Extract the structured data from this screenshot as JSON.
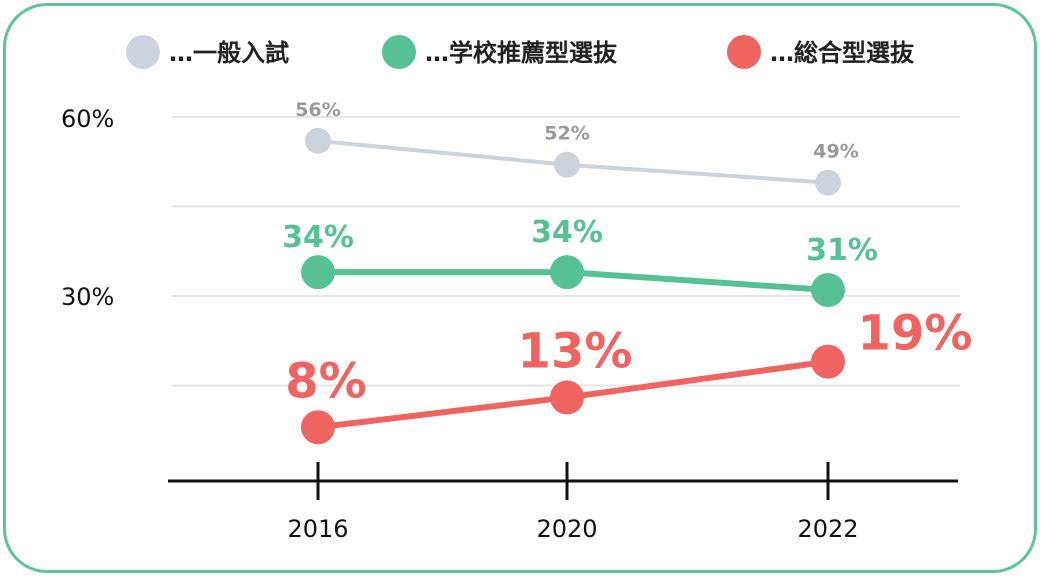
{
  "chart_data": {
    "type": "line",
    "categories": [
      "2016",
      "2020",
      "2022"
    ],
    "yticks": [
      {
        "value": 60,
        "label": "60%"
      },
      {
        "value": 30,
        "label": "30%"
      }
    ],
    "ylim": [
      -2,
      62
    ],
    "grid": true,
    "legend_position": "top",
    "series": [
      {
        "name": "…一般入試",
        "color": "#cdd3dc",
        "label_color": "#999999",
        "values": [
          56,
          52,
          49
        ],
        "labels": [
          "56%",
          "52%",
          "49%"
        ]
      },
      {
        "name": "…学校推薦型選抜",
        "color": "#55c194",
        "label_color": "#55c194",
        "values": [
          34,
          34,
          31
        ],
        "labels": [
          "34%",
          "34%",
          "31%"
        ]
      },
      {
        "name": "…総合型選抜",
        "color": "#ef6461",
        "label_color": "#ef6461",
        "values": [
          8,
          13,
          19
        ],
        "labels": [
          "8%",
          "13%",
          "19%"
        ]
      }
    ]
  }
}
